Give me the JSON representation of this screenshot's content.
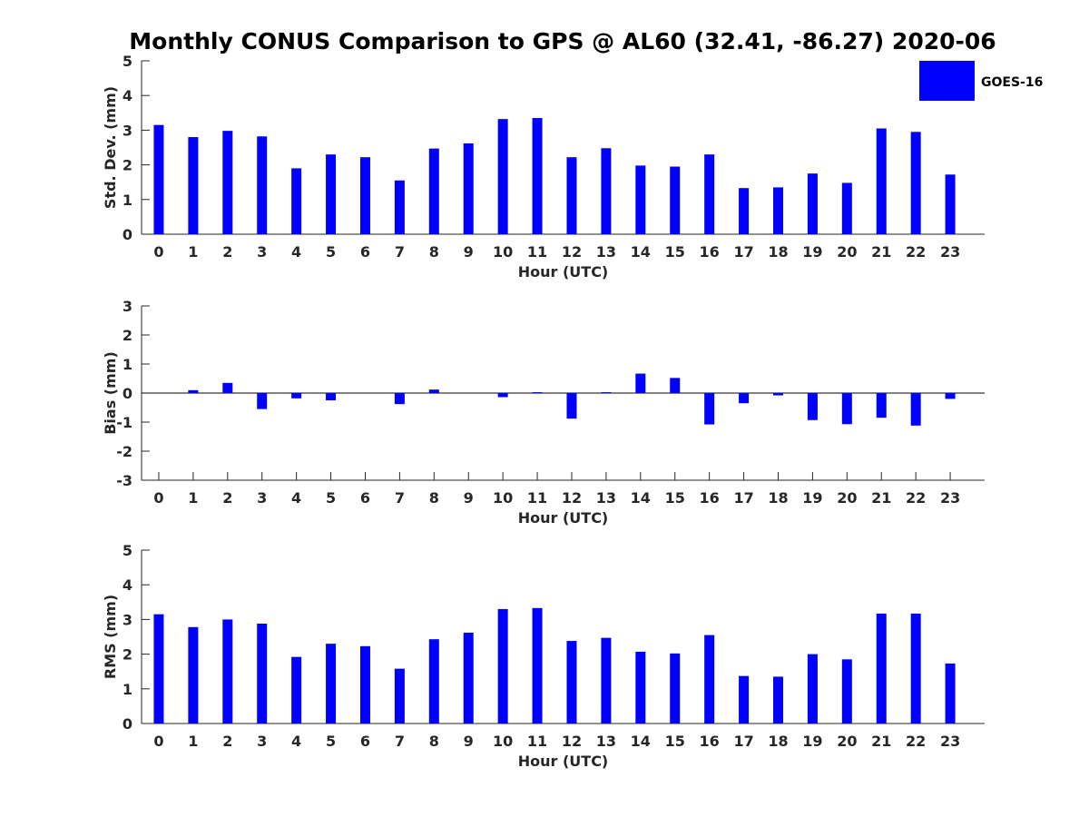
{
  "figure": {
    "title": "Monthly CONUS Comparison to GPS @ AL60 (32.41, -86.27) 2020-06",
    "legend": {
      "label": "GOES-16",
      "color": "#0000ff",
      "placement": "top-right"
    }
  },
  "chart_data": [
    {
      "type": "bar",
      "name": "std",
      "categories": [
        "0",
        "1",
        "2",
        "3",
        "4",
        "5",
        "6",
        "7",
        "8",
        "9",
        "10",
        "11",
        "12",
        "13",
        "14",
        "15",
        "16",
        "17",
        "18",
        "19",
        "20",
        "21",
        "22",
        "23"
      ],
      "series": [
        {
          "name": "GOES-16",
          "color": "#0000ff",
          "values": [
            3.15,
            2.8,
            2.98,
            2.82,
            1.9,
            2.3,
            2.22,
            1.55,
            2.47,
            2.62,
            3.32,
            3.35,
            2.22,
            2.48,
            1.98,
            1.95,
            2.3,
            1.33,
            1.35,
            1.75,
            1.48,
            3.05,
            2.95,
            1.72
          ]
        }
      ],
      "xlabel": "Hour (UTC)",
      "ylabel": "Std. Dev. (mm)",
      "ylim": [
        0,
        5
      ],
      "yticks": [
        "0",
        "1",
        "2",
        "3",
        "4",
        "5"
      ],
      "grid": false
    },
    {
      "type": "bar",
      "name": "bias",
      "categories": [
        "0",
        "1",
        "2",
        "3",
        "4",
        "5",
        "6",
        "7",
        "8",
        "9",
        "10",
        "11",
        "12",
        "13",
        "14",
        "15",
        "16",
        "17",
        "18",
        "19",
        "20",
        "21",
        "22",
        "23"
      ],
      "series": [
        {
          "name": "GOES-16",
          "color": "#0000ff",
          "values": [
            0.0,
            0.1,
            0.35,
            -0.55,
            -0.18,
            -0.25,
            0.0,
            -0.38,
            0.12,
            0.0,
            -0.14,
            0.03,
            -0.88,
            0.03,
            0.67,
            0.52,
            -1.08,
            -0.35,
            -0.08,
            -0.93,
            -1.07,
            -0.85,
            -1.12,
            -0.2
          ]
        }
      ],
      "xlabel": "Hour (UTC)",
      "ylabel": "Bias (mm)",
      "ylim": [
        -3,
        3
      ],
      "yticks": [
        "-3",
        "-2",
        "-1",
        "0",
        "1",
        "2",
        "3"
      ],
      "grid": false
    },
    {
      "type": "bar",
      "name": "rms",
      "categories": [
        "0",
        "1",
        "2",
        "3",
        "4",
        "5",
        "6",
        "7",
        "8",
        "9",
        "10",
        "11",
        "12",
        "13",
        "14",
        "15",
        "16",
        "17",
        "18",
        "19",
        "20",
        "21",
        "22",
        "23"
      ],
      "series": [
        {
          "name": "GOES-16",
          "color": "#0000ff",
          "values": [
            3.15,
            2.78,
            3.0,
            2.88,
            1.92,
            2.3,
            2.23,
            1.58,
            2.43,
            2.62,
            3.3,
            3.33,
            2.38,
            2.47,
            2.07,
            2.02,
            2.55,
            1.37,
            1.35,
            2.0,
            1.85,
            3.17,
            3.17,
            1.73
          ]
        }
      ],
      "xlabel": "Hour (UTC)",
      "ylabel": "RMS (mm)",
      "ylim": [
        0,
        5
      ],
      "yticks": [
        "0",
        "1",
        "2",
        "3",
        "4",
        "5"
      ],
      "grid": false
    }
  ]
}
